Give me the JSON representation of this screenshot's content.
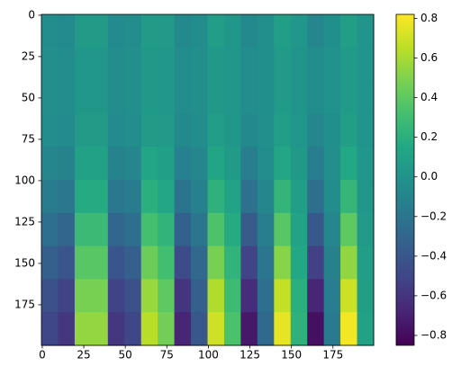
{
  "chart_data": {
    "type": "heatmap",
    "xlim": [
      -0.5,
      199.5
    ],
    "ylim": [
      199.5,
      -0.5
    ],
    "xticks": [
      0,
      25,
      50,
      75,
      100,
      125,
      150,
      175
    ],
    "yticks": [
      0,
      25,
      50,
      75,
      100,
      125,
      150,
      175
    ],
    "colormap": "viridis",
    "clim": [
      -0.85,
      0.82
    ],
    "cticks": [
      {
        "value": -0.8,
        "label": "−0.8"
      },
      {
        "value": -0.6,
        "label": "−0.6"
      },
      {
        "value": -0.4,
        "label": "−0.4"
      },
      {
        "value": -0.2,
        "label": "−0.2"
      },
      {
        "value": 0,
        "label": "0.0"
      },
      0.2,
      0.4,
      0.6,
      0.8
    ],
    "values": [
      [
        -0.05,
        -0.06,
        0.06,
        0.06,
        -0.06,
        -0.05,
        0.06,
        0.05,
        -0.07,
        -0.04,
        0.07,
        0.03,
        -0.07,
        -0.03,
        0.08,
        0.02,
        -0.08,
        -0.02,
        0.08,
        0.01
      ],
      [
        -0.03,
        -0.04,
        0.03,
        0.03,
        -0.04,
        -0.03,
        0.04,
        0.03,
        -0.04,
        -0.03,
        0.04,
        0.02,
        -0.05,
        -0.02,
        0.05,
        0.01,
        -0.05,
        -0.01,
        0.05,
        0.01
      ],
      [
        -0.03,
        -0.04,
        0.03,
        0.03,
        -0.04,
        -0.03,
        0.04,
        0.03,
        -0.04,
        -0.03,
        0.04,
        0.02,
        -0.05,
        -0.02,
        0.05,
        0.01,
        -0.05,
        -0.01,
        0.05,
        0.01
      ],
      [
        -0.05,
        -0.06,
        0.06,
        0.06,
        -0.06,
        -0.05,
        0.06,
        0.05,
        -0.07,
        -0.04,
        0.07,
        0.03,
        -0.07,
        -0.03,
        0.08,
        0.02,
        -0.08,
        -0.02,
        0.08,
        0.01
      ],
      [
        -0.09,
        -0.11,
        0.1,
        0.1,
        -0.11,
        -0.09,
        0.12,
        0.09,
        -0.13,
        -0.08,
        0.13,
        0.06,
        -0.14,
        -0.05,
        0.14,
        0.04,
        -0.15,
        -0.03,
        0.15,
        0.02
      ],
      [
        -0.16,
        -0.19,
        0.17,
        0.17,
        -0.19,
        -0.16,
        0.2,
        0.14,
        -0.21,
        -0.13,
        0.22,
        0.11,
        -0.23,
        -0.09,
        0.24,
        0.07,
        -0.24,
        -0.05,
        0.25,
        0.03
      ],
      [
        -0.25,
        -0.3,
        0.28,
        0.28,
        -0.3,
        -0.25,
        0.32,
        0.23,
        -0.34,
        -0.2,
        0.35,
        0.17,
        -0.37,
        -0.14,
        0.38,
        0.11,
        -0.39,
        -0.08,
        0.4,
        0.05
      ],
      [
        -0.35,
        -0.41,
        0.38,
        0.38,
        -0.41,
        -0.35,
        0.44,
        0.31,
        -0.47,
        -0.28,
        0.48,
        0.23,
        -0.51,
        -0.2,
        0.52,
        0.15,
        -0.53,
        -0.12,
        0.54,
        0.07
      ],
      [
        -0.44,
        -0.52,
        0.48,
        0.48,
        -0.52,
        -0.44,
        0.56,
        0.4,
        -0.6,
        -0.35,
        0.62,
        0.29,
        -0.64,
        -0.25,
        0.67,
        0.2,
        -0.68,
        -0.15,
        0.69,
        0.08
      ],
      [
        -0.5,
        -0.59,
        0.55,
        0.55,
        -0.59,
        -0.5,
        0.64,
        0.46,
        -0.68,
        -0.4,
        0.7,
        0.34,
        -0.74,
        -0.29,
        0.76,
        0.22,
        -0.78,
        -0.17,
        0.79,
        0.1
      ]
    ]
  }
}
